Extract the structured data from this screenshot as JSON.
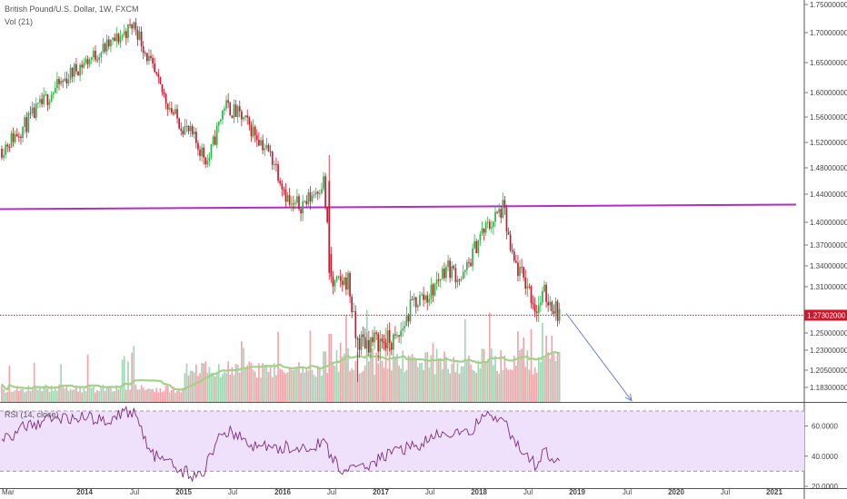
{
  "header": {
    "title": "British Pound/U.S. Dollar, 1W, FXCM",
    "volume_label": "Vol (21)"
  },
  "rsi_panel": {
    "label": "RSI (14, close)"
  },
  "colors": {
    "up": "#26a69a",
    "up_candle": "#2cb24a",
    "down": "#d0162b",
    "vol_up": "#9fd6b4",
    "vol_down": "#f4a3aa",
    "vol_ma": "#a5cf8c",
    "resistance": "#b52ac8",
    "current_price_line": "#d0162b",
    "arrow": "#6f82c8",
    "rsi_line": "#7b2b7f",
    "rsi_band": "#efe1fb"
  },
  "chart_data": {
    "type": "candlestick",
    "symbol": "British Pound/U.S. Dollar",
    "timeframe": "1W",
    "source": "FXCM",
    "x_ticks": [
      "Mar",
      "2014",
      "Jul",
      "2015",
      "Jul",
      "2016",
      "Jul",
      "2017",
      "Jul",
      "2018",
      "Jul",
      "2019",
      "Jul",
      "2020",
      "Jul",
      "2021"
    ],
    "y_ticks": [
      "1.75000000",
      "1.70000000",
      "1.65000000",
      "1.60000000",
      "1.56000000",
      "1.52000000",
      "1.48000000",
      "1.44000000",
      "1.40000000",
      "1.37000000",
      "1.34000000",
      "1.31000000",
      "1.25000000",
      "1.23000000",
      "1.20500000",
      "1.18300000"
    ],
    "current_price": "1.27302000",
    "resistance_level": 1.42,
    "price_path": [
      [
        "2013-03",
        1.51
      ],
      [
        "2013-06",
        1.55
      ],
      [
        "2013-09",
        1.6
      ],
      [
        "2013-12",
        1.64
      ],
      [
        "2014-03",
        1.67
      ],
      [
        "2014-05",
        1.69
      ],
      [
        "2014-07",
        1.715
      ],
      [
        "2014-08",
        1.68
      ],
      [
        "2014-10",
        1.61
      ],
      [
        "2014-12",
        1.56
      ],
      [
        "2015-02",
        1.53
      ],
      [
        "2015-04",
        1.49
      ],
      [
        "2015-06",
        1.58
      ],
      [
        "2015-08",
        1.56
      ],
      [
        "2015-10",
        1.53
      ],
      [
        "2015-12",
        1.49
      ],
      [
        "2016-02",
        1.42
      ],
      [
        "2016-04",
        1.43
      ],
      [
        "2016-06",
        1.46
      ],
      [
        "2016-07",
        1.31
      ],
      [
        "2016-09",
        1.32
      ],
      [
        "2016-10",
        1.24
      ],
      [
        "2016-12",
        1.24
      ],
      [
        "2017-03",
        1.24
      ],
      [
        "2017-05",
        1.29
      ],
      [
        "2017-07",
        1.3
      ],
      [
        "2017-09",
        1.34
      ],
      [
        "2017-11",
        1.32
      ],
      [
        "2018-01",
        1.38
      ],
      [
        "2018-04",
        1.42
      ],
      [
        "2018-05",
        1.35
      ],
      [
        "2018-07",
        1.31
      ],
      [
        "2018-08",
        1.28
      ],
      [
        "2018-09",
        1.3
      ],
      [
        "2018-11",
        1.273
      ]
    ],
    "projection": {
      "from": [
        "2018-11",
        1.273
      ],
      "to": [
        "2019-07",
        1.18
      ]
    },
    "rsi_ticks": [
      "60.0000",
      "40.0000",
      "20.0000"
    ],
    "rsi_band": [
      30,
      70
    ],
    "rsi_path": [
      [
        "2013-03",
        50
      ],
      [
        "2013-06",
        60
      ],
      [
        "2013-09",
        65
      ],
      [
        "2013-12",
        66
      ],
      [
        "2014-03",
        64
      ],
      [
        "2014-07",
        70
      ],
      [
        "2014-09",
        42
      ],
      [
        "2014-12",
        32
      ],
      [
        "2015-03",
        26
      ],
      [
        "2015-06",
        58
      ],
      [
        "2015-09",
        48
      ],
      [
        "2015-12",
        45
      ],
      [
        "2016-03",
        46
      ],
      [
        "2016-06",
        48
      ],
      [
        "2016-08",
        32
      ],
      [
        "2016-10",
        30
      ],
      [
        "2016-12",
        36
      ],
      [
        "2017-03",
        44
      ],
      [
        "2017-06",
        48
      ],
      [
        "2017-09",
        56
      ],
      [
        "2017-12",
        54
      ],
      [
        "2018-01",
        66
      ],
      [
        "2018-04",
        64
      ],
      [
        "2018-06",
        44
      ],
      [
        "2018-08",
        34
      ],
      [
        "2018-09",
        43
      ],
      [
        "2018-11",
        38
      ]
    ]
  }
}
